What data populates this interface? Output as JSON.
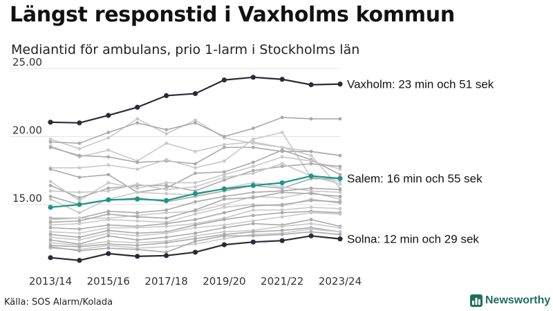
{
  "title": "Längst responstid i Vaxholms kommun",
  "subtitle": "Mediantid för ambulans, prio 1-larm i Stockholms län",
  "source": "Källa: SOS Alarm/Kolada",
  "brand": "Newsworthy",
  "colors": {
    "background_series": "#c8c8c8",
    "background_series_alt": "#a9a9a9",
    "vaxholm": "#2a2a3a",
    "salem": "#17978b",
    "solna": "#2a2a3a",
    "grid": "#e3e3e3",
    "brand": "#1f6f5c"
  },
  "chart_data": {
    "type": "line",
    "title": "Längst responstid i Vaxholms kommun",
    "subtitle": "Mediantid för ambulans, prio 1-larm i Stockholms län",
    "xlabel": "",
    "ylabel": "",
    "x": [
      "2013/14",
      "2014/15",
      "2015/16",
      "2016/17",
      "2017/18",
      "2018/19",
      "2019/20",
      "2020/21",
      "2021/22",
      "2022/23",
      "2023/24"
    ],
    "x_tick_labels": [
      "2013/14",
      "2015/16",
      "2017/18",
      "2019/20",
      "2021/22",
      "2023/24"
    ],
    "y_ticks": [
      "15.00",
      "20.00",
      "25.00"
    ],
    "ylim": [
      10.8,
      25.2
    ],
    "grid": "horizontal",
    "highlighted_series": [
      {
        "label": "Vaxholm: 23 min och 51 sek",
        "key": "vaxholm",
        "values": [
          21.05,
          21.0,
          21.55,
          22.15,
          23.0,
          23.15,
          24.15,
          24.35,
          24.2,
          23.8,
          23.85
        ]
      },
      {
        "label": "Salem: 16 min och 55 sek",
        "key": "salem",
        "values": [
          14.8,
          15.0,
          15.35,
          15.4,
          15.3,
          15.8,
          16.15,
          16.4,
          16.6,
          17.1,
          16.92
        ]
      },
      {
        "label": "Solna: 12 min och 29 sek",
        "key": "solna",
        "values": [
          11.1,
          10.9,
          11.4,
          11.2,
          11.25,
          11.5,
          12.05,
          12.25,
          12.35,
          12.7,
          12.48
        ]
      }
    ],
    "background_series": [
      [
        19.8,
        19.1,
        19.9,
        21.3,
        20.2,
        21.2,
        19.9,
        19.5,
        19.2,
        18.9,
        18.6
      ],
      [
        19.6,
        19.5,
        20.3,
        21.0,
        20.5,
        21.0,
        20.0,
        20.6,
        21.4,
        21.3,
        21.3
      ],
      [
        19.3,
        18.5,
        19.0,
        18.2,
        19.5,
        18.9,
        19.4,
        19.6,
        19.2,
        18.6,
        16.2
      ],
      [
        19.2,
        18.6,
        18.5,
        18.1,
        18.2,
        18.0,
        19.2,
        19.2,
        18.9,
        18.9,
        18.6
      ],
      [
        17.7,
        17.7,
        17.9,
        17.6,
        18.3,
        17.7,
        18.2,
        19.8,
        20.3,
        17.0,
        16.7
      ],
      [
        17.6,
        17.0,
        17.2,
        15.9,
        16.2,
        17.3,
        17.4,
        18.1,
        19.0,
        18.3,
        17.2
      ],
      [
        16.7,
        15.3,
        16.6,
        16.2,
        16.6,
        16.6,
        17.2,
        17.8,
        18.5,
        18.2,
        17.6
      ],
      [
        16.4,
        15.5,
        16.2,
        16.4,
        16.4,
        16.0,
        16.8,
        17.5,
        17.8,
        18.0,
        17.8
      ],
      [
        16.0,
        15.9,
        16.0,
        16.5,
        16.1,
        16.3,
        17.0,
        17.3,
        18.0,
        17.1,
        16.5
      ],
      [
        15.6,
        15.0,
        15.3,
        15.5,
        15.2,
        15.6,
        16.0,
        16.4,
        16.2,
        16.9,
        16.9
      ],
      [
        15.4,
        14.4,
        15.4,
        15.9,
        15.8,
        15.7,
        16.2,
        16.6,
        16.3,
        16.0,
        15.9
      ],
      [
        14.0,
        14.0,
        14.5,
        14.4,
        14.6,
        15.2,
        15.6,
        15.9,
        16.0,
        16.2,
        16.1
      ],
      [
        13.9,
        14.0,
        14.0,
        14.2,
        14.4,
        14.5,
        15.0,
        15.6,
        15.5,
        15.9,
        15.4
      ],
      [
        13.7,
        13.8,
        14.3,
        14.1,
        14.0,
        14.6,
        15.4,
        15.5,
        15.9,
        15.8,
        15.6
      ],
      [
        13.5,
        13.6,
        13.9,
        13.8,
        13.7,
        14.3,
        14.8,
        15.0,
        14.9,
        15.4,
        15.1
      ],
      [
        13.3,
        13.2,
        13.5,
        13.4,
        13.6,
        13.9,
        14.4,
        14.9,
        15.0,
        15.3,
        15.2
      ],
      [
        13.0,
        12.9,
        13.3,
        13.3,
        13.4,
        13.6,
        14.0,
        14.6,
        14.6,
        14.8,
        14.7
      ],
      [
        12.8,
        12.6,
        13.1,
        12.9,
        13.0,
        13.5,
        13.9,
        14.2,
        14.4,
        14.5,
        14.4
      ],
      [
        12.6,
        12.4,
        12.9,
        12.7,
        12.9,
        13.3,
        13.5,
        13.8,
        14.1,
        14.4,
        14.3
      ],
      [
        12.4,
        12.1,
        12.7,
        12.4,
        12.6,
        12.9,
        13.3,
        13.6,
        13.5,
        13.9,
        13.4
      ],
      [
        12.2,
        12.0,
        12.3,
        12.2,
        12.3,
        12.7,
        13.0,
        13.1,
        13.4,
        13.6,
        13.3
      ],
      [
        12.0,
        11.9,
        12.1,
        12.0,
        12.2,
        12.5,
        12.8,
        13.0,
        13.1,
        13.3,
        13.0
      ],
      [
        11.8,
        11.7,
        12.0,
        11.8,
        11.9,
        12.1,
        12.5,
        12.8,
        12.9,
        13.2,
        13.0
      ],
      [
        11.9,
        11.6,
        11.8,
        11.7,
        11.5,
        12.3,
        12.7,
        12.7,
        12.8,
        13.0,
        12.8
      ]
    ]
  }
}
